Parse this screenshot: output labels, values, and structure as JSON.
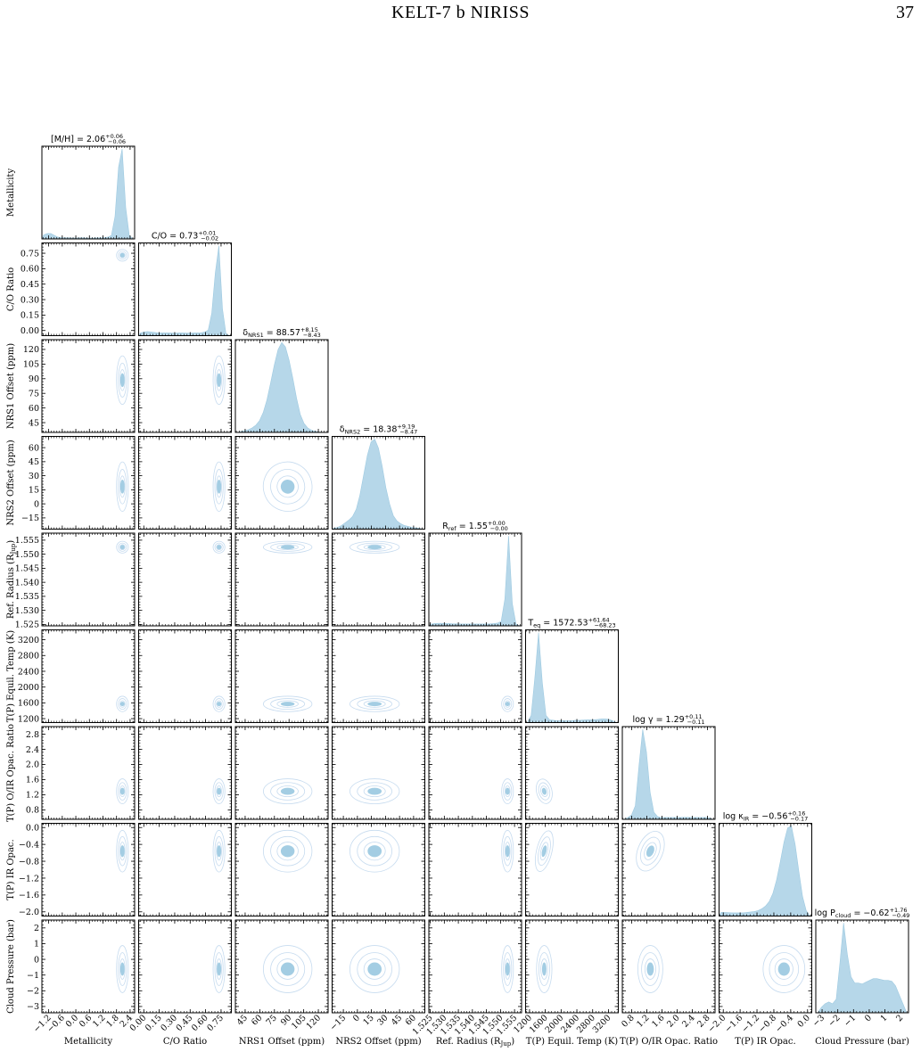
{
  "header": {
    "running_title": "KELT-7 b NIRISS",
    "page_number": "37"
  },
  "chart_data": {
    "type": "corner",
    "fill_color": "#9ecae1",
    "contour_color": "#c6dbef",
    "parameters": [
      {
        "key": "metallicity",
        "label": "Metallicity",
        "title": "[M/H] = 2.06",
        "title_sup": "+0.06",
        "title_sub": "−0.06",
        "range": [
          -1.5,
          2.6
        ],
        "ticks": [
          -1.2,
          -0.6,
          0.0,
          0.6,
          1.2,
          1.8,
          2.4
        ],
        "tick_labels": [
          "−1.2",
          "−0.6",
          "0.0",
          "0.6",
          "1.2",
          "1.8",
          "2.4"
        ],
        "median": 2.06,
        "sigma": 0.06,
        "hist": [
          0.045,
          0.06,
          0.06,
          0.04,
          0.02,
          0.015,
          0.012,
          0.012,
          0.01,
          0.01,
          0.012,
          0.012,
          0.01,
          0.01,
          0.01,
          0.012,
          0.012,
          0.015,
          0.02,
          0.04,
          0.25,
          0.8,
          1.0,
          0.35,
          0.04,
          0.0
        ]
      },
      {
        "key": "co_ratio",
        "label": "C/O Ratio",
        "title": "C/O = 0.73",
        "title_sup": "+0.01",
        "title_sub": "−0.02",
        "range": [
          -0.05,
          0.85
        ],
        "ticks": [
          0.0,
          0.15,
          0.3,
          0.45,
          0.6,
          0.75
        ],
        "tick_labels": [
          "0.00",
          "0.15",
          "0.30",
          "0.45",
          "0.60",
          "0.75"
        ],
        "median": 0.73,
        "sigma": 0.015,
        "hist": [
          0.03,
          0.04,
          0.045,
          0.04,
          0.035,
          0.03,
          0.03,
          0.03,
          0.03,
          0.028,
          0.028,
          0.03,
          0.03,
          0.028,
          0.028,
          0.03,
          0.03,
          0.032,
          0.04,
          0.06,
          0.25,
          0.7,
          1.0,
          0.3,
          0.02,
          0.0
        ]
      },
      {
        "key": "nrs1_offset",
        "label": "NRS1 Offset (ppm)",
        "title": "δ",
        "title_subscript": "NRS1",
        "title_value": " = 88.57",
        "title_sup": "+8.15",
        "title_sub": "−8.43",
        "range": [
          35,
          130
        ],
        "ticks": [
          45,
          60,
          75,
          90,
          105,
          120
        ],
        "tick_labels": [
          "45",
          "60",
          "75",
          "90",
          "105",
          "120"
        ],
        "median": 88.57,
        "sigma": 8.3,
        "hist": [
          0.0,
          0.01,
          0.02,
          0.03,
          0.05,
          0.08,
          0.13,
          0.22,
          0.36,
          0.55,
          0.75,
          0.92,
          1.0,
          0.95,
          0.8,
          0.6,
          0.38,
          0.2,
          0.1,
          0.05,
          0.025,
          0.012,
          0.005,
          0.002,
          0.0
        ]
      },
      {
        "key": "nrs2_offset",
        "label": "NRS2 Offset (ppm)",
        "title": "δ",
        "title_subscript": "NRS2",
        "title_value": " = 18.38",
        "title_sup": "+9.19",
        "title_sub": "−8.47",
        "range": [
          -27,
          72
        ],
        "ticks": [
          -15,
          0,
          15,
          30,
          45,
          60
        ],
        "tick_labels": [
          "−15",
          "0",
          "15",
          "30",
          "45",
          "60"
        ],
        "median": 18.38,
        "sigma": 8.8,
        "hist": [
          0.01,
          0.02,
          0.04,
          0.07,
          0.1,
          0.14,
          0.22,
          0.38,
          0.6,
          0.82,
          0.97,
          1.0,
          0.9,
          0.7,
          0.46,
          0.28,
          0.15,
          0.09,
          0.06,
          0.04,
          0.03,
          0.02,
          0.015,
          0.01,
          0.0
        ]
      },
      {
        "key": "ref_radius",
        "label": "Ref. Radius (R",
        "label_subscript": "Jup",
        "label_suffix": ")",
        "title": "R",
        "title_subscript": "ref",
        "title_value": " = 1.55",
        "title_sup": "+0.00",
        "title_sub": "−0.00",
        "range": [
          1.5245,
          1.5575
        ],
        "ticks": [
          1.525,
          1.53,
          1.535,
          1.54,
          1.545,
          1.55,
          1.555
        ],
        "tick_labels": [
          "1.525",
          "1.530",
          "1.535",
          "1.540",
          "1.545",
          "1.550",
          "1.555"
        ],
        "median": 1.5525,
        "sigma": 0.0006,
        "hist": [
          0.02,
          0.025,
          0.028,
          0.028,
          0.025,
          0.025,
          0.022,
          0.022,
          0.02,
          0.02,
          0.02,
          0.02,
          0.02,
          0.02,
          0.02,
          0.02,
          0.022,
          0.025,
          0.03,
          0.05,
          0.3,
          1.0,
          0.25,
          0.02,
          0.0
        ]
      },
      {
        "key": "teq",
        "label": "T(P) Equil. Temp (K)",
        "title": "T",
        "title_subscript": "eq",
        "title_value": " = 1572.53",
        "title_sup": "+61.64",
        "title_sub": "−68.23",
        "range": [
          1100,
          3450
        ],
        "ticks": [
          1200,
          1600,
          2000,
          2400,
          2800,
          3200
        ],
        "tick_labels": [
          "1200",
          "1600",
          "2000",
          "2400",
          "2800",
          "3200"
        ],
        "median": 1572.53,
        "sigma": 65,
        "hist": [
          0.0,
          0.08,
          0.5,
          1.0,
          0.45,
          0.08,
          0.03,
          0.025,
          0.02,
          0.02,
          0.02,
          0.02,
          0.022,
          0.025,
          0.025,
          0.028,
          0.03,
          0.03,
          0.032,
          0.035,
          0.04,
          0.04,
          0.035,
          0.02,
          0.0
        ]
      },
      {
        "key": "log_gamma",
        "label": "T(P) O/IR Opac. Ratio",
        "title": "log γ = 1.29",
        "title_sup": "+0.11",
        "title_sub": "−0.11",
        "range": [
          0.55,
          3.0
        ],
        "ticks": [
          0.8,
          1.2,
          1.6,
          2.0,
          2.4,
          2.8
        ],
        "tick_labels": [
          "0.8",
          "1.2",
          "1.6",
          "2.0",
          "2.4",
          "2.8"
        ],
        "median": 1.29,
        "sigma": 0.11,
        "hist": [
          0.0,
          0.02,
          0.05,
          0.15,
          0.6,
          1.0,
          0.75,
          0.3,
          0.08,
          0.03,
          0.02,
          0.02,
          0.02,
          0.02,
          0.02,
          0.02,
          0.022,
          0.022,
          0.02,
          0.02,
          0.02,
          0.02,
          0.02,
          0.015,
          0.0
        ]
      },
      {
        "key": "log_kappa_ir",
        "label": "T(P) IR Opac.",
        "title": "log κ",
        "title_subscript": "IR",
        "title_value": " = −0.56",
        "title_sup": "+0.16",
        "title_sub": "−0.17",
        "range": [
          -2.1,
          0.1
        ],
        "ticks": [
          -2.0,
          -1.6,
          -1.2,
          -0.8,
          -0.4,
          0.0
        ],
        "tick_labels": [
          "−2.0",
          "−1.6",
          "−1.2",
          "−0.8",
          "−0.4",
          "0.0"
        ],
        "median": -0.56,
        "sigma": 0.165,
        "hist": [
          0.04,
          0.04,
          0.038,
          0.036,
          0.035,
          0.035,
          0.036,
          0.04,
          0.045,
          0.05,
          0.06,
          0.08,
          0.11,
          0.16,
          0.25,
          0.4,
          0.6,
          0.82,
          0.98,
          1.0,
          0.8,
          0.5,
          0.22,
          0.06,
          0.0
        ]
      },
      {
        "key": "cloud_pressure",
        "label": "Cloud Pressure (bar)",
        "title": "log P",
        "title_subscript": "cloud",
        "title_value": " = −0.62",
        "title_sup": "+1.76",
        "title_sub": "−0.49",
        "range": [
          -3.4,
          2.5
        ],
        "ticks": [
          -3,
          -2,
          -1,
          0,
          1,
          2
        ],
        "tick_labels": [
          "−3",
          "−2",
          "−1",
          "0",
          "1",
          "2"
        ],
        "median": -0.62,
        "sigma": 0.5,
        "hist": [
          0.0,
          0.06,
          0.1,
          0.12,
          0.1,
          0.15,
          0.55,
          1.0,
          0.65,
          0.4,
          0.33,
          0.33,
          0.32,
          0.34,
          0.36,
          0.38,
          0.38,
          0.37,
          0.36,
          0.36,
          0.35,
          0.3,
          0.2,
          0.1,
          0.0
        ]
      }
    ],
    "correlations": [
      {
        "pair": [
          2,
          3
        ],
        "rho": 0.45
      },
      {
        "pair": [
          6,
          7
        ],
        "rho": -0.5
      },
      {
        "pair": [
          5,
          6
        ],
        "rho": 0.3
      },
      {
        "pair": [
          5,
          7
        ],
        "rho": -0.3
      }
    ]
  }
}
